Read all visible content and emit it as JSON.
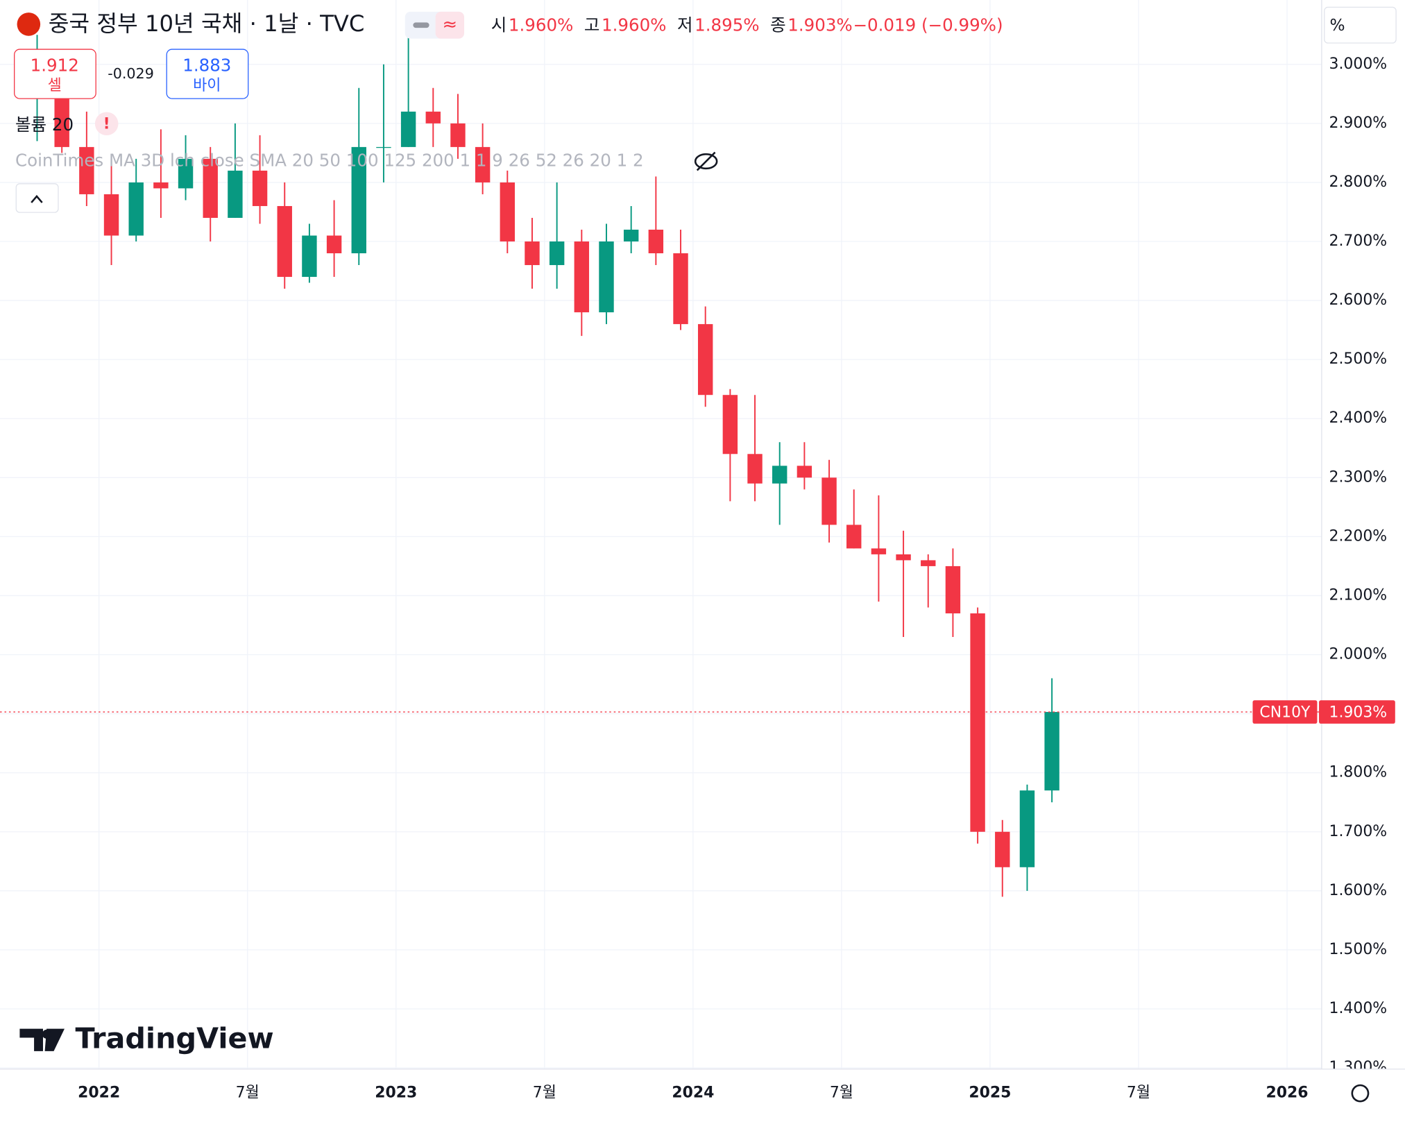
{
  "header": {
    "title": "중국 정부 10년 국채 · 1날 · TVC",
    "ohlc": [
      {
        "key": "시",
        "value": "1.960%"
      },
      {
        "key": "고",
        "value": "1.960%"
      },
      {
        "key": "저",
        "value": "1.895%"
      },
      {
        "key": "종",
        "value": "1.903%"
      }
    ],
    "change": "−0.019 (−0.99%)",
    "unit": "%"
  },
  "trade": {
    "sell_price": "1.912",
    "sell_label": "셀",
    "spread": "-0.029",
    "buy_price": "1.883",
    "buy_label": "바이"
  },
  "indicators": {
    "volume": "볼륨 20",
    "studies": "CoinTimes MA 3D lch close SMA 20 50 100 125 200 1 1 9 26 52 26 20 1 2"
  },
  "logo": "TradingView",
  "chart_data": {
    "type": "candlestick",
    "symbol": "CN10Y",
    "last_price": {
      "value": 1.903,
      "label": "1.903%"
    },
    "up_color": "#089981",
    "down_color": "#f23645",
    "x": [
      "2021-10",
      "2021-11",
      "2021-12",
      "2022-01",
      "2022-02",
      "2022-03",
      "2022-04",
      "2022-05",
      "2022-06",
      "2022-07",
      "2022-08",
      "2022-09",
      "2022-10",
      "2022-11",
      "2022-12",
      "2023-01",
      "2023-02",
      "2023-03",
      "2023-04",
      "2023-05",
      "2023-06",
      "2023-07",
      "2023-08",
      "2023-09",
      "2023-10",
      "2023-11",
      "2023-12",
      "2024-01",
      "2024-02",
      "2024-03",
      "2024-04",
      "2024-05",
      "2024-06",
      "2024-07",
      "2024-08",
      "2024-09",
      "2024-10",
      "2024-11",
      "2024-12",
      "2025-01",
      "2025-02",
      "2025-03"
    ],
    "open": [
      2.95,
      2.98,
      2.86,
      2.78,
      2.71,
      2.8,
      2.79,
      2.84,
      2.74,
      2.82,
      2.76,
      2.64,
      2.71,
      2.68,
      2.86,
      2.86,
      2.92,
      2.9,
      2.86,
      2.8,
      2.7,
      2.66,
      2.7,
      2.58,
      2.7,
      2.72,
      2.68,
      2.56,
      2.44,
      2.34,
      2.29,
      2.32,
      2.3,
      2.22,
      2.18,
      2.17,
      2.16,
      2.15,
      2.07,
      1.7,
      1.64,
      1.77
    ],
    "high": [
      3.05,
      3.0,
      2.92,
      2.83,
      2.84,
      2.89,
      2.88,
      2.86,
      2.9,
      2.88,
      2.8,
      2.73,
      2.77,
      2.96,
      3.0,
      3.05,
      2.96,
      2.95,
      2.9,
      2.82,
      2.74,
      2.8,
      2.72,
      2.73,
      2.76,
      2.81,
      2.72,
      2.59,
      2.45,
      2.44,
      2.36,
      2.36,
      2.33,
      2.28,
      2.27,
      2.21,
      2.17,
      2.18,
      2.08,
      1.72,
      1.78,
      1.96
    ],
    "low": [
      2.87,
      2.85,
      2.76,
      2.66,
      2.7,
      2.74,
      2.77,
      2.7,
      2.74,
      2.73,
      2.62,
      2.63,
      2.64,
      2.66,
      2.8,
      2.86,
      2.86,
      2.84,
      2.78,
      2.68,
      2.62,
      2.62,
      2.54,
      2.56,
      2.68,
      2.66,
      2.55,
      2.42,
      2.26,
      2.26,
      2.22,
      2.28,
      2.19,
      2.18,
      2.09,
      2.03,
      2.08,
      2.03,
      1.68,
      1.59,
      1.6,
      1.75
    ],
    "close": [
      2.98,
      2.86,
      2.78,
      2.71,
      2.8,
      2.79,
      2.84,
      2.74,
      2.82,
      2.76,
      2.64,
      2.71,
      2.68,
      2.86,
      2.86,
      2.92,
      2.9,
      2.86,
      2.8,
      2.7,
      2.66,
      2.7,
      2.58,
      2.7,
      2.72,
      2.68,
      2.56,
      2.44,
      2.34,
      2.29,
      2.32,
      2.3,
      2.22,
      2.18,
      2.17,
      2.16,
      2.15,
      2.07,
      1.7,
      1.64,
      1.77,
      1.903
    ],
    "xlim": [
      "2021-09",
      "2026-02"
    ],
    "xticks": [
      {
        "value": "2022-01",
        "label": "2022"
      },
      {
        "value": "2022-07",
        "label": "7월"
      },
      {
        "value": "2023-01",
        "label": "2023"
      },
      {
        "value": "2023-07",
        "label": "7월"
      },
      {
        "value": "2024-01",
        "label": "2024"
      },
      {
        "value": "2024-07",
        "label": "7월"
      },
      {
        "value": "2025-01",
        "label": "2025"
      },
      {
        "value": "2025-07",
        "label": "7월"
      },
      {
        "value": "2026-01",
        "label": "2026"
      }
    ],
    "ylim": [
      1.298,
      3.109
    ],
    "yticks": [
      {
        "value": 1.3,
        "label": "1.300%"
      },
      {
        "value": 1.4,
        "label": "1.400%"
      },
      {
        "value": 1.5,
        "label": "1.500%"
      },
      {
        "value": 1.6,
        "label": "1.600%"
      },
      {
        "value": 1.7,
        "label": "1.700%"
      },
      {
        "value": 1.8,
        "label": "1.800%"
      },
      {
        "value": 1.9,
        "label": "1.900%"
      },
      {
        "value": 2.0,
        "label": "2.000%"
      },
      {
        "value": 2.1,
        "label": "2.100%"
      },
      {
        "value": 2.2,
        "label": "2.200%"
      },
      {
        "value": 2.3,
        "label": "2.300%"
      },
      {
        "value": 2.4,
        "label": "2.400%"
      },
      {
        "value": 2.5,
        "label": "2.500%"
      },
      {
        "value": 2.6,
        "label": "2.600%"
      },
      {
        "value": 2.7,
        "label": "2.700%"
      },
      {
        "value": 2.8,
        "label": "2.800%"
      },
      {
        "value": 2.9,
        "label": "2.900%"
      },
      {
        "value": 3.0,
        "label": "3.000%"
      }
    ],
    "grid": true
  }
}
